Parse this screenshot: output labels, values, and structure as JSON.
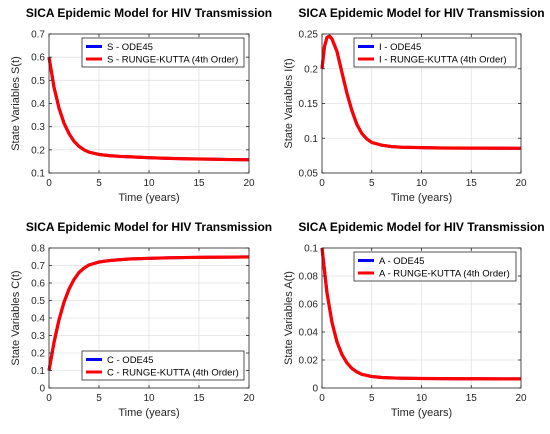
{
  "chart_data": [
    {
      "type": "line",
      "title": "SICA Epidemic Model for HIV Transmission",
      "xlabel": "Time (years)",
      "ylabel": "State Variables S(t)",
      "xlim": [
        0,
        20
      ],
      "ylim": [
        0.1,
        0.7
      ],
      "xticks": [
        "0",
        "5",
        "10",
        "15",
        "20"
      ],
      "yticks": [
        "0.1",
        "0.2",
        "0.3",
        "0.4",
        "0.5",
        "0.6",
        "0.7"
      ],
      "grid": true,
      "legend_position": "top-right",
      "x": [
        0,
        0.5,
        1,
        1.5,
        2,
        2.5,
        3,
        3.5,
        4,
        5,
        6,
        7,
        8,
        9,
        10,
        12,
        14,
        16,
        18,
        20
      ],
      "series": [
        {
          "name": "S - ODE45",
          "color": "#0000ff",
          "values": [
            0.6,
            0.47,
            0.38,
            0.315,
            0.27,
            0.237,
            0.215,
            0.2,
            0.19,
            0.18,
            0.175,
            0.172,
            0.17,
            0.168,
            0.166,
            0.163,
            0.161,
            0.16,
            0.158,
            0.157
          ]
        },
        {
          "name": "S - RUNGE-KUTTA (4th Order)",
          "color": "#ff0000",
          "values": [
            0.6,
            0.47,
            0.38,
            0.315,
            0.27,
            0.237,
            0.215,
            0.2,
            0.19,
            0.18,
            0.175,
            0.172,
            0.17,
            0.168,
            0.166,
            0.163,
            0.161,
            0.16,
            0.158,
            0.157
          ]
        }
      ]
    },
    {
      "type": "line",
      "title": "SICA Epidemic Model for HIV Transmission",
      "xlabel": "Time (years)",
      "ylabel": "State Variables I(t)",
      "xlim": [
        0,
        20
      ],
      "ylim": [
        0.05,
        0.25
      ],
      "xticks": [
        "0",
        "5",
        "10",
        "15",
        "20"
      ],
      "yticks": [
        "0.05",
        "0.1",
        "0.15",
        "0.2",
        "0.25"
      ],
      "grid": true,
      "legend_position": "top-right",
      "x": [
        0,
        0.25,
        0.5,
        0.75,
        1,
        1.5,
        2,
        2.5,
        3,
        3.5,
        4,
        4.5,
        5,
        6,
        7,
        8,
        10,
        12,
        15,
        20
      ],
      "series": [
        {
          "name": "I - ODE45",
          "color": "#0000ff",
          "values": [
            0.2,
            0.232,
            0.245,
            0.247,
            0.243,
            0.225,
            0.195,
            0.165,
            0.14,
            0.12,
            0.107,
            0.099,
            0.094,
            0.09,
            0.088,
            0.087,
            0.0865,
            0.086,
            0.0858,
            0.0855
          ]
        },
        {
          "name": "I - RUNGE-KUTTA (4th Order)",
          "color": "#ff0000",
          "values": [
            0.2,
            0.232,
            0.245,
            0.247,
            0.243,
            0.225,
            0.195,
            0.165,
            0.14,
            0.12,
            0.107,
            0.099,
            0.094,
            0.09,
            0.088,
            0.087,
            0.0865,
            0.086,
            0.0858,
            0.0855
          ]
        }
      ]
    },
    {
      "type": "line",
      "title": "SICA Epidemic Model for HIV Transmission",
      "xlabel": "Time (years)",
      "ylabel": "State Variables C(t)",
      "xlim": [
        0,
        20
      ],
      "ylim": [
        0,
        0.8
      ],
      "xticks": [
        "0",
        "5",
        "10",
        "15",
        "20"
      ],
      "yticks": [
        "0",
        "0.1",
        "0.2",
        "0.3",
        "0.4",
        "0.5",
        "0.6",
        "0.7",
        "0.8"
      ],
      "grid": true,
      "legend_position": "bottom-right",
      "x": [
        0,
        0.5,
        1,
        1.5,
        2,
        2.5,
        3,
        3.5,
        4,
        5,
        6,
        7,
        8,
        10,
        12,
        14,
        16,
        18,
        20
      ],
      "series": [
        {
          "name": "C - ODE45",
          "color": "#0000ff",
          "values": [
            0.1,
            0.26,
            0.39,
            0.49,
            0.565,
            0.62,
            0.66,
            0.685,
            0.703,
            0.72,
            0.728,
            0.733,
            0.737,
            0.741,
            0.744,
            0.746,
            0.747,
            0.748,
            0.749
          ]
        },
        {
          "name": "C - RUNGE-KUTTA (4th Order)",
          "color": "#ff0000",
          "values": [
            0.1,
            0.26,
            0.39,
            0.49,
            0.565,
            0.62,
            0.66,
            0.685,
            0.703,
            0.72,
            0.728,
            0.733,
            0.737,
            0.741,
            0.744,
            0.746,
            0.747,
            0.748,
            0.749
          ]
        }
      ]
    },
    {
      "type": "line",
      "title": "SICA Epidemic Model for HIV Transmission",
      "xlabel": "Time (years)",
      "ylabel": "State Variables A(t)",
      "xlim": [
        0,
        20
      ],
      "ylim": [
        0,
        0.1
      ],
      "xticks": [
        "0",
        "5",
        "10",
        "15",
        "20"
      ],
      "yticks": [
        "0",
        "0.02",
        "0.04",
        "0.06",
        "0.08",
        "0.1"
      ],
      "grid": true,
      "legend_position": "top-right",
      "x": [
        0,
        0.5,
        1,
        1.5,
        2,
        2.5,
        3,
        3.5,
        4,
        5,
        6,
        7,
        8,
        10,
        12,
        14,
        16,
        18,
        20
      ],
      "series": [
        {
          "name": "A - ODE45",
          "color": "#0000ff",
          "values": [
            0.1,
            0.068,
            0.047,
            0.033,
            0.024,
            0.018,
            0.014,
            0.0115,
            0.0098,
            0.0082,
            0.0075,
            0.0072,
            0.007,
            0.0068,
            0.0067,
            0.0066,
            0.0066,
            0.0065,
            0.0065
          ]
        },
        {
          "name": "A - RUNGE-KUTTA (4th Order)",
          "color": "#ff0000",
          "values": [
            0.1,
            0.068,
            0.047,
            0.033,
            0.024,
            0.018,
            0.014,
            0.0115,
            0.0098,
            0.0082,
            0.0075,
            0.0072,
            0.007,
            0.0068,
            0.0067,
            0.0066,
            0.0066,
            0.0065,
            0.0065
          ]
        }
      ]
    }
  ]
}
